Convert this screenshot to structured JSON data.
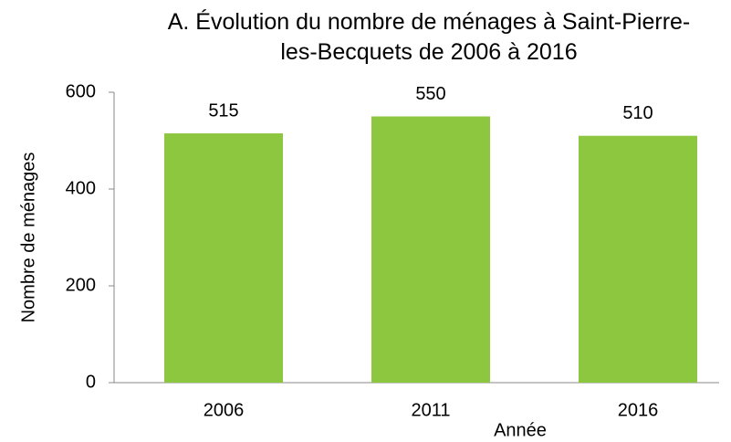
{
  "chart_data": {
    "type": "bar",
    "title": "A. Évolution du nombre de ménages à Saint-Pierre-les-Becquets de 2006 à 2016",
    "x_label": "Année",
    "y_label": "Nombre de ménages",
    "categories": [
      "2006",
      "2011",
      "2016"
    ],
    "values": [
      515,
      550,
      510
    ],
    "color": "#8dc63f",
    "ylim": [
      0,
      600
    ],
    "yticks": [
      0,
      200,
      400,
      600
    ],
    "grid": false
  }
}
